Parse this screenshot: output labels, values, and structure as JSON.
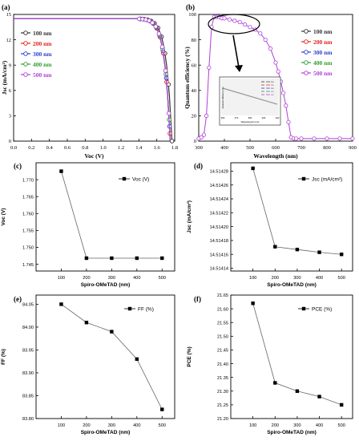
{
  "chart_data": [
    {
      "id": "a",
      "panel_label": "(a)",
      "type": "line",
      "xlabel": "Voc (V)",
      "ylabel": "Jsc (mA/cm²)",
      "xlim": [
        0.0,
        1.8
      ],
      "ylim": [
        0,
        15
      ],
      "xticks": [
        "0.0",
        "0.2",
        "0.4",
        "0.6",
        "0.8",
        "1.0",
        "1.2",
        "1.4",
        "1.6",
        "1.8"
      ],
      "yticks": [
        "0",
        "3",
        "6",
        "9",
        "12",
        "15"
      ],
      "legend_position": "center-left",
      "series": [
        {
          "name": "100 nm",
          "color": "#333333",
          "jsc": 14.51,
          "voc": 1.77
        },
        {
          "name": "200 nm",
          "color": "#e0241b",
          "jsc": 14.51,
          "voc": 1.75
        },
        {
          "name": "300 nm",
          "color": "#2a3fd6",
          "jsc": 14.51,
          "voc": 1.75
        },
        {
          "name": "400 nm",
          "color": "#2e9e2e",
          "jsc": 14.51,
          "voc": 1.75
        },
        {
          "name": "500 nm",
          "color": "#b040d8",
          "jsc": 14.51,
          "voc": 1.75
        }
      ]
    },
    {
      "id": "b",
      "panel_label": "(b)",
      "type": "line",
      "xlabel": "Wavelength (nm)",
      "ylabel": "Quantum efficiency (%)",
      "xlim": [
        300,
        900
      ],
      "ylim": [
        0,
        100
      ],
      "xticks": [
        "300",
        "400",
        "500",
        "600",
        "700",
        "800",
        "900"
      ],
      "yticks": [
        "0",
        "20",
        "40",
        "60",
        "80",
        "100"
      ],
      "legend_position": "right",
      "series_names": [
        "100 nm",
        "200 nm",
        "300 nm",
        "400 nm",
        "500 nm"
      ],
      "x": [
        300,
        310,
        320,
        330,
        340,
        350,
        360,
        370,
        380,
        390,
        400,
        420,
        440,
        460,
        480,
        500,
        520,
        540,
        560,
        580,
        600,
        610,
        620,
        630,
        640,
        650,
        660,
        670,
        680,
        700,
        750,
        800,
        850,
        900
      ],
      "y": [
        2,
        3,
        5,
        20,
        58,
        90,
        98,
        98,
        98,
        97,
        97,
        96,
        95,
        94,
        92,
        90,
        88,
        85,
        80,
        73,
        62,
        55,
        47,
        38,
        28,
        15,
        3,
        2,
        2,
        2,
        2,
        2,
        2,
        2
      ],
      "inset": {
        "xlabel": "Wavelength (nm)",
        "ylabel": "Quantum efficiency (%)",
        "xticks": [
          "360",
          "370",
          "380",
          "390",
          "400"
        ],
        "legend": [
          "100 nm",
          "200 nm",
          "300 nm",
          "400 nm",
          "500 nm"
        ]
      }
    },
    {
      "id": "c",
      "panel_label": "(c)",
      "type": "line",
      "series_name": "Voc (V)",
      "xlabel": "Spiro-OMeTAD (nm)",
      "ylabel": "Voc (V)",
      "x": [
        100,
        200,
        300,
        400,
        500
      ],
      "y": [
        1.7725,
        1.7468,
        1.7468,
        1.7468,
        1.7468
      ],
      "xlim": [
        0,
        550
      ],
      "ylim": [
        1.743,
        1.775
      ],
      "xticks": [
        "100",
        "200",
        "300",
        "400",
        "500"
      ],
      "yticks": [
        "1.745",
        "1.750",
        "1.755",
        "1.760",
        "1.765",
        "1.770"
      ],
      "legend_position": "top-right"
    },
    {
      "id": "d",
      "panel_label": "(d)",
      "type": "line",
      "series_name": "Jsc (mA/cm²)",
      "xlabel": "Spiro-OMeTAD (nm)",
      "ylabel": "Jsc (mA/cm²)",
      "x": [
        100,
        200,
        300,
        400,
        500
      ],
      "y": [
        14.514284,
        14.514171,
        14.514167,
        14.514163,
        14.51416
      ],
      "xlim": [
        0,
        550
      ],
      "ylim": [
        14.514136,
        14.514292
      ],
      "xticks": [
        "100",
        "200",
        "300",
        "400",
        "500"
      ],
      "yticks": [
        "14.51414",
        "14.51416",
        "14.51418",
        "14.51420",
        "14.51422",
        "14.51424",
        "14.51426",
        "14.51428"
      ],
      "legend_position": "top-right"
    },
    {
      "id": "e",
      "panel_label": "(e)",
      "type": "line",
      "series_name": "FF (%)",
      "xlabel": "Spiro-OMeTAD (nm)",
      "ylabel": "FF (%)",
      "x": [
        100,
        200,
        300,
        400,
        500
      ],
      "y": [
        84.05,
        84.01,
        83.99,
        83.93,
        83.82
      ],
      "xlim": [
        0,
        550
      ],
      "ylim": [
        83.8,
        84.07
      ],
      "xticks": [
        "100",
        "200",
        "300",
        "400",
        "500"
      ],
      "yticks": [
        "83.80",
        "83.85",
        "83.90",
        "83.95",
        "84.00",
        "84.05"
      ],
      "legend_position": "top-right"
    },
    {
      "id": "f",
      "panel_label": "(f)",
      "type": "line",
      "series_name": "PCE (%)",
      "xlabel": "Spiro-OMeTAD (nm)",
      "ylabel": "PCE (%)",
      "x": [
        100,
        200,
        300,
        400,
        500
      ],
      "y": [
        21.62,
        21.33,
        21.3,
        21.28,
        21.25
      ],
      "xlim": [
        0,
        550
      ],
      "ylim": [
        21.2,
        21.65
      ],
      "xticks": [
        "100",
        "200",
        "300",
        "400",
        "500"
      ],
      "yticks": [
        "21.20",
        "21.25",
        "21.30",
        "21.35",
        "21.40",
        "21.45",
        "21.50",
        "21.55",
        "21.60",
        "21.65"
      ],
      "legend_position": "top-right"
    }
  ]
}
